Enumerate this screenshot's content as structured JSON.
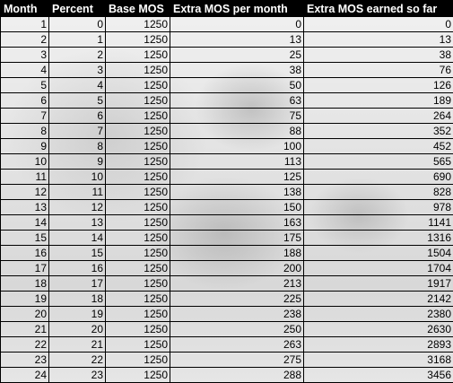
{
  "table": {
    "headers": [
      "Month",
      "Percent",
      "Base MOS",
      "Extra MOS per month",
      "Extra MOS earned so far"
    ],
    "rows": [
      [
        "1",
        "0",
        "1250",
        "0",
        "0"
      ],
      [
        "2",
        "1",
        "1250",
        "13",
        "13"
      ],
      [
        "3",
        "2",
        "1250",
        "25",
        "38"
      ],
      [
        "4",
        "3",
        "1250",
        "38",
        "76"
      ],
      [
        "5",
        "4",
        "1250",
        "50",
        "126"
      ],
      [
        "6",
        "5",
        "1250",
        "63",
        "189"
      ],
      [
        "7",
        "6",
        "1250",
        "75",
        "264"
      ],
      [
        "8",
        "7",
        "1250",
        "88",
        "352"
      ],
      [
        "9",
        "8",
        "1250",
        "100",
        "452"
      ],
      [
        "10",
        "9",
        "1250",
        "113",
        "565"
      ],
      [
        "11",
        "10",
        "1250",
        "125",
        "690"
      ],
      [
        "12",
        "11",
        "1250",
        "138",
        "828"
      ],
      [
        "13",
        "12",
        "1250",
        "150",
        "978"
      ],
      [
        "14",
        "13",
        "1250",
        "163",
        "1141"
      ],
      [
        "15",
        "14",
        "1250",
        "175",
        "1316"
      ],
      [
        "16",
        "15",
        "1250",
        "188",
        "1504"
      ],
      [
        "17",
        "16",
        "1250",
        "200",
        "1704"
      ],
      [
        "18",
        "17",
        "1250",
        "213",
        "1917"
      ],
      [
        "19",
        "18",
        "1250",
        "225",
        "2142"
      ],
      [
        "20",
        "19",
        "1250",
        "238",
        "2380"
      ],
      [
        "21",
        "20",
        "1250",
        "250",
        "2630"
      ],
      [
        "22",
        "21",
        "1250",
        "263",
        "2893"
      ],
      [
        "23",
        "22",
        "1250",
        "275",
        "3168"
      ],
      [
        "24",
        "23",
        "1250",
        "288",
        "3456"
      ]
    ]
  }
}
